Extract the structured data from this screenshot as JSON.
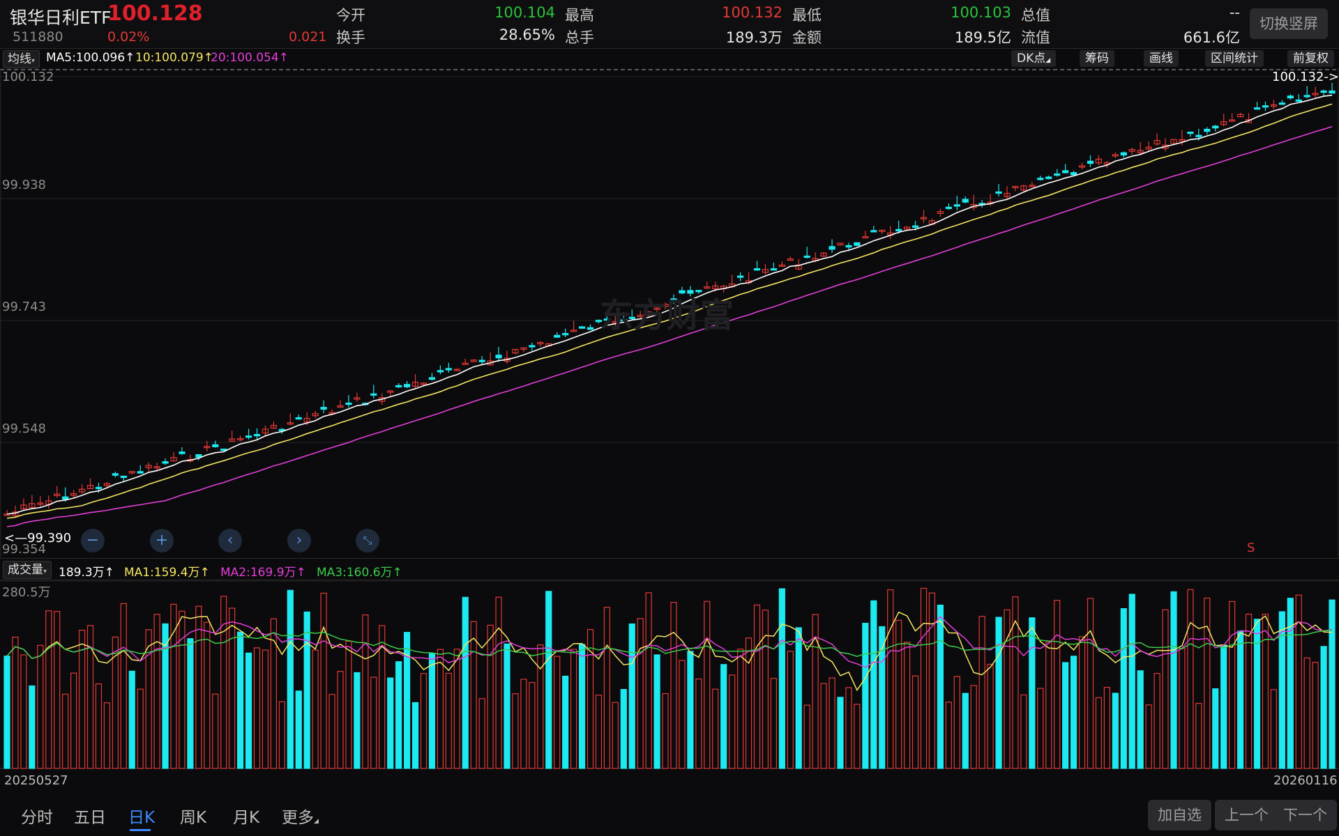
{
  "header": {
    "name": "银华日利ETF",
    "code": "511880",
    "price": "100.128",
    "change_pct": "0.02%",
    "change": "0.021",
    "fields": [
      {
        "label": "今开",
        "value": "100.104",
        "color": "green"
      },
      {
        "label": "最高",
        "value": "100.132",
        "color": "red"
      },
      {
        "label": "最低",
        "value": "100.103",
        "color": "green"
      },
      {
        "label": "总值",
        "value": "--",
        "color": "white"
      },
      {
        "label": "换手",
        "value": "28.65%",
        "color": "white"
      },
      {
        "label": "总手",
        "value": "189.3万",
        "color": "white"
      },
      {
        "label": "金额",
        "value": "189.5亿",
        "color": "white"
      },
      {
        "label": "流值",
        "value": "661.6亿",
        "color": "white"
      }
    ],
    "switch_label": "切换竖屏"
  },
  "mabar": {
    "selector": "均线",
    "ma5": "MA5:100.096↑",
    "ma10": "10:100.079↑",
    "ma20": "20:100.054↑",
    "tools": [
      "DK点",
      "筹码",
      "画线",
      "区间统计",
      "前复权"
    ]
  },
  "kline": {
    "axis_labels": [
      "100.132",
      "99.938",
      "99.743",
      "99.548",
      "99.354"
    ],
    "high_marker": "100.132->",
    "low_marker": "<—99.390",
    "signal": "S",
    "watermark": "东方财富"
  },
  "volume": {
    "selector": "成交量",
    "value": "189.3万↑",
    "ma1": "MA1:159.4万↑",
    "ma2": "MA2:169.9万↑",
    "ma3": "MA3:160.6万↑",
    "axis_top": "280.5万",
    "date_start": "20250527",
    "date_end": "20260116"
  },
  "period_tabs": [
    "分时",
    "五日",
    "日K",
    "周K",
    "月K",
    "更多"
  ],
  "active_tab": "日K",
  "nav_buttons": [
    "加自选",
    "上一个",
    "下一个"
  ],
  "colors": {
    "up": "#e53935",
    "down": "#1de9f0",
    "ma5": "#ffffff",
    "ma10": "#f5e663",
    "ma20": "#e33fd8",
    "accent": "#3d8bff"
  },
  "chart_data": {
    "type": "candlestick",
    "title": "",
    "ylim": [
      99.354,
      100.132
    ],
    "volume_ylim": [
      0,
      280.5
    ],
    "x_range": [
      "20250527",
      "20260116"
    ],
    "series": [
      {
        "name": "MA5",
        "value": 100.096
      },
      {
        "name": "MA10",
        "value": 100.079
      },
      {
        "name": "MA20",
        "value": 100.054
      }
    ],
    "last": {
      "price": 100.128,
      "high": 100.132,
      "low": 100.103,
      "open": 100.104,
      "volume": 189.3
    },
    "period_low": 99.39,
    "period_high": 100.132
  }
}
